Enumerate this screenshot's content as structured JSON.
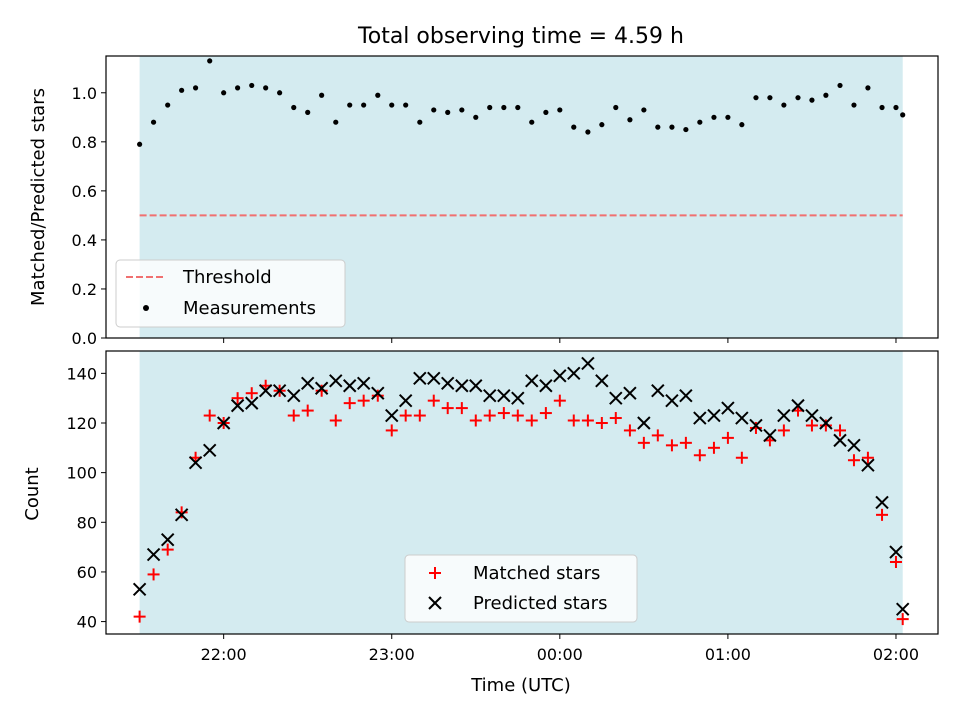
{
  "chart_data": [
    {
      "type": "scatter",
      "title": "Total observing time = 4.59 h",
      "xlabel": "",
      "ylabel": "Matched/Predicted stars",
      "x_unit": "hours UTC (values past 24 are after midnight)",
      "xlim": [
        21.3,
        26.25
      ],
      "ylim": [
        0,
        1.15
      ],
      "yticks": [
        0.0,
        0.2,
        0.4,
        0.6,
        0.8,
        1.0
      ],
      "ytick_labels": [
        "0.0",
        "0.2",
        "0.4",
        "0.6",
        "0.8",
        "1.0"
      ],
      "observing_window": [
        21.5,
        26.04
      ],
      "shade_color": "#d4ebf0",
      "grid": false,
      "legend_position": "lower-left",
      "threshold": {
        "name": "Threshold",
        "value": 0.5,
        "color": "#f07070",
        "style": "dashed"
      },
      "series": [
        {
          "name": "Measurements",
          "color": "#000000",
          "x": [
            21.5,
            21.583,
            21.667,
            21.75,
            21.833,
            21.917,
            22.0,
            22.083,
            22.167,
            22.25,
            22.333,
            22.417,
            22.5,
            22.583,
            22.667,
            22.75,
            22.833,
            22.917,
            23.0,
            23.083,
            23.167,
            23.25,
            23.333,
            23.417,
            23.5,
            23.583,
            23.667,
            23.75,
            23.833,
            23.917,
            24.0,
            24.083,
            24.167,
            24.25,
            24.333,
            24.417,
            24.5,
            24.583,
            24.667,
            24.75,
            24.833,
            24.917,
            25.0,
            25.083,
            25.167,
            25.25,
            25.333,
            25.417,
            25.5,
            25.583,
            25.667,
            25.75,
            25.833,
            25.917,
            26.0,
            26.04
          ],
          "y": [
            0.79,
            0.88,
            0.95,
            1.01,
            1.02,
            1.13,
            1.0,
            1.02,
            1.03,
            1.02,
            1.0,
            0.94,
            0.92,
            0.99,
            0.88,
            0.95,
            0.95,
            0.99,
            0.95,
            0.95,
            0.88,
            0.93,
            0.92,
            0.93,
            0.9,
            0.94,
            0.94,
            0.94,
            0.88,
            0.92,
            0.93,
            0.86,
            0.84,
            0.87,
            0.94,
            0.89,
            0.93,
            0.86,
            0.86,
            0.85,
            0.88,
            0.9,
            0.9,
            0.87,
            0.98,
            0.98,
            0.95,
            0.98,
            0.97,
            0.99,
            1.03,
            0.95,
            1.02,
            0.94,
            0.94,
            0.91
          ]
        }
      ]
    },
    {
      "type": "scatter",
      "title": "",
      "xlabel": "Time (UTC)",
      "ylabel": "Count",
      "x_unit": "hours UTC (values past 24 are after midnight)",
      "xlim": [
        21.3,
        26.25
      ],
      "ylim": [
        35,
        149
      ],
      "yticks": [
        40,
        60,
        80,
        100,
        120,
        140
      ],
      "ytick_labels": [
        "40",
        "60",
        "80",
        "100",
        "120",
        "140"
      ],
      "xticks": [
        22,
        23,
        24,
        25,
        26
      ],
      "xtick_labels": [
        "22:00",
        "23:00",
        "00:00",
        "01:00",
        "02:00"
      ],
      "observing_window": [
        21.5,
        26.04
      ],
      "shade_color": "#d4ebf0",
      "grid": false,
      "legend_position": "lower-center",
      "series": [
        {
          "name": "Matched stars",
          "marker": "plus",
          "color": "#ff0000",
          "x": [
            21.5,
            21.583,
            21.667,
            21.75,
            21.833,
            21.917,
            22.0,
            22.083,
            22.167,
            22.25,
            22.333,
            22.417,
            22.5,
            22.583,
            22.667,
            22.75,
            22.833,
            22.917,
            23.0,
            23.083,
            23.167,
            23.25,
            23.333,
            23.417,
            23.5,
            23.583,
            23.667,
            23.75,
            23.833,
            23.917,
            24.0,
            24.083,
            24.167,
            24.25,
            24.333,
            24.417,
            24.5,
            24.583,
            24.667,
            24.75,
            24.833,
            24.917,
            25.0,
            25.083,
            25.167,
            25.25,
            25.333,
            25.417,
            25.5,
            25.583,
            25.667,
            25.75,
            25.833,
            25.917,
            26.0,
            26.04
          ],
          "y": [
            42,
            59,
            69,
            84,
            106,
            123,
            120,
            130,
            132,
            135,
            133,
            123,
            125,
            133,
            121,
            128,
            129,
            131,
            117,
            123,
            123,
            129,
            126,
            126,
            121,
            123,
            124,
            123,
            121,
            124,
            129,
            121,
            121,
            120,
            122,
            117,
            112,
            115,
            111,
            112,
            107,
            110,
            114,
            106,
            118,
            113,
            117,
            125,
            119,
            119,
            117,
            105,
            106,
            83,
            64,
            41
          ]
        },
        {
          "name": "Predicted stars",
          "marker": "x",
          "color": "#000000",
          "x": [
            21.5,
            21.583,
            21.667,
            21.75,
            21.833,
            21.917,
            22.0,
            22.083,
            22.167,
            22.25,
            22.333,
            22.417,
            22.5,
            22.583,
            22.667,
            22.75,
            22.833,
            22.917,
            23.0,
            23.083,
            23.167,
            23.25,
            23.333,
            23.417,
            23.5,
            23.583,
            23.667,
            23.75,
            23.833,
            23.917,
            24.0,
            24.083,
            24.167,
            24.25,
            24.333,
            24.417,
            24.5,
            24.583,
            24.667,
            24.75,
            24.833,
            24.917,
            25.0,
            25.083,
            25.167,
            25.25,
            25.333,
            25.417,
            25.5,
            25.583,
            25.667,
            25.75,
            25.833,
            25.917,
            26.0,
            26.04
          ],
          "y": [
            53,
            67,
            73,
            83,
            104,
            109,
            120,
            127,
            128,
            133,
            133,
            131,
            136,
            134,
            137,
            135,
            136,
            132,
            123,
            129,
            138,
            138,
            136,
            135,
            135,
            131,
            131,
            130,
            137,
            135,
            139,
            140,
            144,
            137,
            130,
            132,
            120,
            133,
            129,
            131,
            122,
            123,
            126,
            122,
            119,
            115,
            123,
            127,
            123,
            120,
            113,
            111,
            103,
            88,
            68,
            45
          ]
        }
      ]
    }
  ]
}
